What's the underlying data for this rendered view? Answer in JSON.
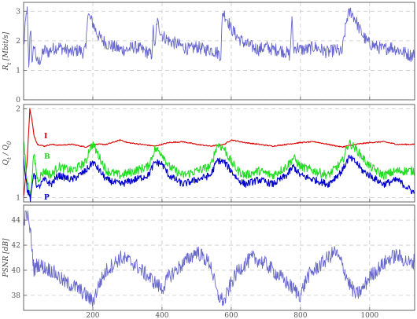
{
  "chart_data": [
    {
      "type": "line",
      "panel": "rate",
      "ylabel": "R_t [Mbit/s]",
      "xlim": [
        0,
        1130
      ],
      "ylim": [
        0,
        3.3
      ],
      "yticks": [
        0,
        1,
        2,
        3
      ],
      "grid": true,
      "series": [
        {
          "name": "",
          "color": "#6666cc",
          "x": [
            0,
            10,
            15,
            20,
            25,
            30,
            40,
            50,
            60,
            70,
            80,
            100,
            120,
            140,
            160,
            170,
            180,
            185,
            190,
            200,
            210,
            220,
            240,
            260,
            280,
            300,
            320,
            340,
            360,
            370,
            375,
            380,
            385,
            390,
            400,
            420,
            440,
            460,
            480,
            500,
            520,
            540,
            560,
            570,
            575,
            580,
            590,
            600,
            620,
            640,
            660,
            680,
            700,
            720,
            740,
            760,
            770,
            775,
            780,
            790,
            800,
            820,
            840,
            860,
            880,
            900,
            920,
            935,
            945,
            950,
            960,
            970,
            980,
            990,
            1000,
            1020,
            1040,
            1060,
            1080,
            1100,
            1120,
            1130
          ],
          "y": [
            1.8,
            3.2,
            1.0,
            2.6,
            1.1,
            1.9,
            1.2,
            1.4,
            1.7,
            1.6,
            1.7,
            1.8,
            1.7,
            1.6,
            1.7,
            1.6,
            1.7,
            3.0,
            2.8,
            2.6,
            2.3,
            2.1,
            1.9,
            1.8,
            1.7,
            1.7,
            1.8,
            1.7,
            1.6,
            1.5,
            2.4,
            1.6,
            2.7,
            2.5,
            2.2,
            2.0,
            1.9,
            1.8,
            1.7,
            1.8,
            1.7,
            1.7,
            1.6,
            1.5,
            3.0,
            2.9,
            2.7,
            2.4,
            2.1,
            1.9,
            1.8,
            1.7,
            1.8,
            1.7,
            1.7,
            1.6,
            1.5,
            2.8,
            1.7,
            1.8,
            1.7,
            1.7,
            1.8,
            1.7,
            1.6,
            1.7,
            1.6,
            2.8,
            3.0,
            2.9,
            2.7,
            2.4,
            2.2,
            2.0,
            1.9,
            1.8,
            1.7,
            1.8,
            1.7,
            1.6,
            1.5,
            1.6
          ]
        }
      ]
    },
    {
      "type": "line",
      "panel": "quantization",
      "ylabel": "Q_t / Q_0",
      "xlim": [
        0,
        1130
      ],
      "ylim": [
        0.95,
        2.05
      ],
      "yticks": [
        1,
        2
      ],
      "grid": true,
      "series": [
        {
          "name": "I",
          "color": "#dd0000",
          "x": [
            0,
            10,
            18,
            25,
            30,
            40,
            60,
            80,
            100,
            140,
            180,
            200,
            240,
            280,
            300,
            340,
            380,
            420,
            460,
            500,
            540,
            580,
            600,
            640,
            680,
            720,
            760,
            800,
            840,
            880,
            920,
            960,
            1000,
            1040,
            1080,
            1130
          ],
          "y": [
            1.0,
            1.4,
            2.0,
            1.85,
            1.7,
            1.6,
            1.58,
            1.6,
            1.59,
            1.6,
            1.57,
            1.6,
            1.6,
            1.65,
            1.62,
            1.6,
            1.58,
            1.62,
            1.63,
            1.6,
            1.58,
            1.6,
            1.65,
            1.62,
            1.6,
            1.58,
            1.6,
            1.62,
            1.63,
            1.6,
            1.57,
            1.6,
            1.62,
            1.63,
            1.6,
            1.6
          ]
        },
        {
          "name": "B",
          "color": "#22dd22",
          "x": [
            0,
            10,
            20,
            30,
            40,
            60,
            80,
            100,
            140,
            180,
            190,
            200,
            220,
            240,
            280,
            320,
            360,
            380,
            400,
            420,
            460,
            500,
            540,
            560,
            580,
            600,
            620,
            640,
            680,
            720,
            760,
            780,
            800,
            840,
            880,
            920,
            940,
            960,
            980,
            1000,
            1040,
            1080,
            1130
          ],
          "y": [
            1.65,
            1.2,
            1.0,
            1.5,
            1.2,
            1.3,
            1.25,
            1.35,
            1.3,
            1.4,
            1.55,
            1.6,
            1.45,
            1.3,
            1.25,
            1.3,
            1.35,
            1.55,
            1.5,
            1.35,
            1.25,
            1.3,
            1.35,
            1.6,
            1.55,
            1.4,
            1.3,
            1.25,
            1.3,
            1.25,
            1.35,
            1.45,
            1.35,
            1.3,
            1.25,
            1.4,
            1.62,
            1.55,
            1.45,
            1.35,
            1.25,
            1.3,
            1.3
          ]
        },
        {
          "name": "P",
          "color": "#0000cc",
          "x": [
            0,
            10,
            20,
            30,
            40,
            60,
            80,
            100,
            140,
            180,
            200,
            220,
            240,
            280,
            320,
            360,
            380,
            400,
            420,
            460,
            500,
            540,
            560,
            580,
            600,
            620,
            640,
            680,
            720,
            760,
            780,
            800,
            840,
            880,
            920,
            940,
            960,
            980,
            1000,
            1040,
            1080,
            1130
          ],
          "y": [
            1.45,
            1.1,
            0.98,
            1.3,
            1.1,
            1.2,
            1.15,
            1.25,
            1.2,
            1.3,
            1.4,
            1.3,
            1.2,
            1.15,
            1.2,
            1.25,
            1.4,
            1.38,
            1.25,
            1.15,
            1.2,
            1.25,
            1.42,
            1.4,
            1.3,
            1.2,
            1.15,
            1.2,
            1.15,
            1.25,
            1.35,
            1.25,
            1.2,
            1.15,
            1.3,
            1.45,
            1.4,
            1.3,
            1.25,
            1.15,
            1.2,
            1.05
          ]
        }
      ]
    },
    {
      "type": "line",
      "panel": "psnr",
      "ylabel": "PSNR [dB]",
      "xlabel": "",
      "xlim": [
        0,
        1130
      ],
      "ylim": [
        36.8,
        45.2
      ],
      "yticks": [
        38,
        40,
        42,
        44
      ],
      "xticks": [
        200,
        400,
        600,
        800,
        1000
      ],
      "grid": true,
      "series": [
        {
          "name": "",
          "color": "#6666cc",
          "x": [
            0,
            10,
            20,
            30,
            40,
            60,
            80,
            100,
            120,
            140,
            160,
            180,
            200,
            220,
            240,
            260,
            280,
            300,
            320,
            340,
            360,
            380,
            400,
            420,
            440,
            460,
            480,
            500,
            520,
            540,
            560,
            580,
            600,
            620,
            640,
            660,
            680,
            700,
            720,
            740,
            760,
            780,
            800,
            820,
            840,
            860,
            880,
            900,
            920,
            940,
            960,
            980,
            1000,
            1020,
            1040,
            1060,
            1080,
            1100,
            1120,
            1130
          ],
          "y": [
            44.0,
            44.5,
            43.0,
            40.0,
            40.5,
            40.2,
            40.0,
            39.5,
            39.0,
            38.8,
            38.5,
            38.0,
            37.5,
            39.0,
            40.0,
            40.5,
            41.0,
            40.8,
            40.5,
            40.0,
            39.5,
            39.0,
            38.5,
            39.5,
            40.0,
            40.5,
            41.0,
            41.5,
            41.0,
            40.5,
            38.0,
            37.5,
            39.0,
            40.0,
            40.5,
            41.0,
            40.8,
            40.5,
            40.0,
            39.5,
            39.0,
            38.5,
            38.0,
            39.5,
            40.0,
            40.5,
            41.0,
            41.5,
            40.5,
            39.0,
            38.0,
            38.5,
            39.5,
            40.0,
            40.5,
            41.0,
            41.2,
            40.8,
            40.5,
            40.8
          ]
        }
      ]
    }
  ]
}
